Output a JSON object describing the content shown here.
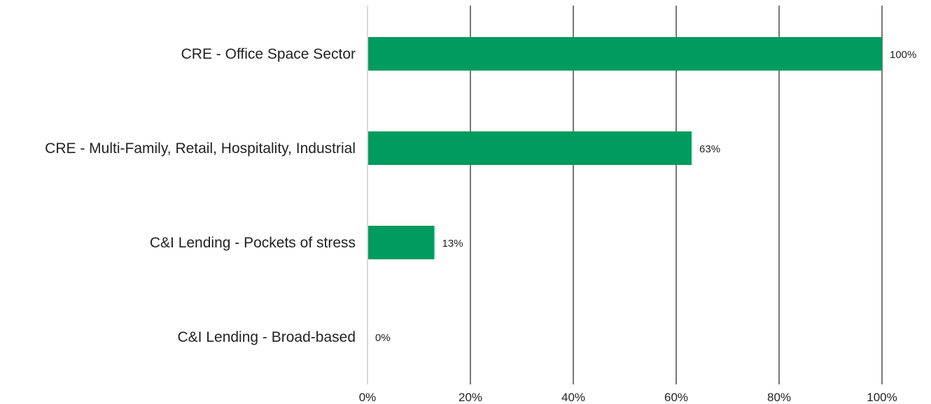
{
  "chart_data": {
    "type": "bar",
    "orientation": "horizontal",
    "categories": [
      "CRE - Office Space Sector",
      "CRE - Multi-Family, Retail, Hospitality, Industrial",
      "C&I Lending - Pockets of stress",
      "C&I Lending - Broad-based"
    ],
    "values": [
      100,
      63,
      13,
      0
    ],
    "data_labels": [
      "100%",
      "63%",
      "13%",
      "0%"
    ],
    "xlim": [
      0,
      100
    ],
    "x_ticks": [
      0,
      20,
      40,
      60,
      80,
      100
    ],
    "x_tick_labels": [
      "0%",
      "20%",
      "40%",
      "60%",
      "80%",
      "100%"
    ],
    "grid": true,
    "legend": "none",
    "colors": {
      "bar": "#009B5E",
      "gridline": "#555555",
      "axis": "#d9d9d9"
    }
  }
}
